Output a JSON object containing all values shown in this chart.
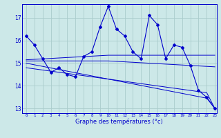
{
  "xlabel": "Graphe des températures (°c)",
  "bg_color": "#cce8e8",
  "grid_color": "#aacccc",
  "line_color": "#0000cc",
  "xlim": [
    -0.5,
    23.2
  ],
  "ylim": [
    12.8,
    17.6
  ],
  "yticks": [
    13,
    14,
    15,
    16,
    17
  ],
  "xticks": [
    0,
    1,
    2,
    3,
    4,
    5,
    6,
    7,
    8,
    9,
    10,
    11,
    12,
    13,
    14,
    15,
    16,
    17,
    18,
    19,
    20,
    21,
    22,
    23
  ],
  "hours": [
    0,
    1,
    2,
    3,
    4,
    5,
    6,
    7,
    8,
    9,
    10,
    11,
    12,
    13,
    14,
    15,
    16,
    17,
    18,
    19,
    20,
    21,
    22,
    23
  ],
  "temp_line": [
    16.2,
    15.8,
    15.2,
    14.6,
    14.8,
    14.5,
    14.4,
    15.3,
    15.5,
    16.6,
    17.5,
    16.5,
    16.2,
    15.5,
    15.2,
    17.1,
    16.7,
    15.2,
    15.8,
    15.7,
    14.9,
    13.8,
    13.5,
    13.0
  ],
  "trend1": [
    15.15,
    15.17,
    15.19,
    15.21,
    15.23,
    15.25,
    15.27,
    15.29,
    15.31,
    15.33,
    15.35,
    15.35,
    15.35,
    15.35,
    15.35,
    15.35,
    15.35,
    15.35,
    15.35,
    15.35,
    15.35,
    15.35,
    15.35,
    15.35
  ],
  "trend2": [
    15.1,
    15.1,
    15.1,
    15.1,
    15.1,
    15.1,
    15.1,
    15.1,
    15.1,
    15.1,
    15.1,
    15.08,
    15.06,
    15.04,
    15.02,
    15.0,
    14.98,
    14.96,
    14.94,
    14.92,
    14.9,
    14.88,
    14.86,
    14.84
  ],
  "trend3": [
    15.0,
    14.93,
    14.86,
    14.79,
    14.72,
    14.65,
    14.58,
    14.51,
    14.44,
    14.37,
    14.3,
    14.23,
    14.16,
    14.09,
    14.02,
    13.95,
    13.88,
    13.81,
    13.74,
    13.67,
    13.6,
    13.53,
    13.46,
    13.0
  ],
  "trend4": [
    14.8,
    14.75,
    14.7,
    14.65,
    14.6,
    14.55,
    14.5,
    14.45,
    14.4,
    14.35,
    14.3,
    14.25,
    14.2,
    14.15,
    14.1,
    14.05,
    14.0,
    13.95,
    13.9,
    13.85,
    13.8,
    13.75,
    13.7,
    13.0
  ]
}
